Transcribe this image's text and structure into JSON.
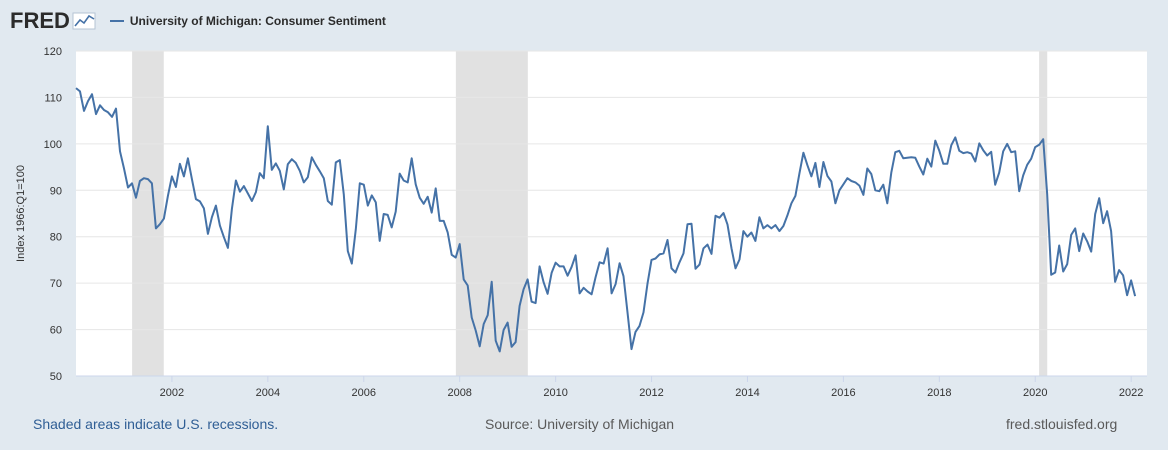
{
  "header": {
    "logo": "FRED",
    "series_title": "University of Michigan: Consumer Sentiment"
  },
  "footer": {
    "recession_note": "Shaded areas indicate U.S. recessions.",
    "source": "Source: University of Michigan",
    "site": "fred.stlouisfed.org"
  },
  "colors": {
    "line": "#4572a7",
    "recession": "#e1e1e1",
    "grid": "#e6e6e6",
    "background": "#e1e9f0"
  },
  "chart_data": {
    "type": "line",
    "title": "University of Michigan: Consumer Sentiment",
    "xlabel": "",
    "ylabel": "Index 1966:Q1=100",
    "xlim": [
      2000.0,
      2022.33
    ],
    "ylim": [
      50,
      120
    ],
    "yticks": [
      50,
      60,
      70,
      80,
      90,
      100,
      110,
      120
    ],
    "xticks": [
      2002,
      2004,
      2006,
      2008,
      2010,
      2012,
      2014,
      2016,
      2018,
      2020,
      2022
    ],
    "grid": true,
    "recessions": [
      [
        2001.17,
        2001.83
      ],
      [
        2007.92,
        2009.42
      ],
      [
        2020.08,
        2020.25
      ]
    ],
    "series": [
      {
        "name": "University of Michigan: Consumer Sentiment",
        "start": 2000.0,
        "step": 0.08333,
        "values": [
          112.0,
          111.3,
          107.1,
          109.2,
          110.7,
          106.4,
          108.3,
          107.3,
          106.8,
          105.8,
          107.6,
          98.4,
          94.7,
          90.6,
          91.5,
          88.4,
          92.0,
          92.6,
          92.4,
          91.5,
          81.8,
          82.7,
          83.9,
          88.8,
          93.0,
          90.7,
          95.7,
          93.0,
          96.9,
          92.4,
          88.1,
          87.6,
          86.1,
          80.6,
          84.2,
          86.7,
          82.4,
          79.9,
          77.6,
          86.0,
          92.1,
          89.7,
          90.9,
          89.3,
          87.7,
          89.6,
          93.7,
          92.6,
          103.8,
          94.4,
          95.8,
          94.2,
          90.2,
          95.6,
          96.7,
          95.9,
          94.2,
          91.7,
          92.8,
          97.1,
          95.5,
          94.1,
          92.6,
          87.7,
          86.9,
          96.0,
          96.5,
          89.1,
          76.9,
          74.2,
          81.6,
          91.5,
          91.2,
          86.7,
          88.9,
          87.4,
          79.1,
          84.9,
          84.7,
          82.0,
          85.4,
          93.6,
          92.1,
          91.7,
          96.9,
          91.3,
          88.4,
          87.1,
          88.6,
          85.2,
          90.4,
          83.4,
          83.4,
          80.9,
          76.1,
          75.5,
          78.4,
          70.8,
          69.5,
          62.6,
          59.8,
          56.4,
          61.2,
          63.1,
          70.3,
          57.6,
          55.3,
          59.9,
          61.5,
          56.3,
          57.3,
          65.1,
          68.7,
          70.8,
          66.0,
          65.7,
          73.6,
          70.2,
          67.7,
          72.2,
          74.4,
          73.6,
          73.6,
          71.6,
          73.5,
          76.0,
          67.8,
          69.0,
          68.2,
          67.6,
          71.3,
          74.5,
          74.2,
          77.5,
          67.8,
          69.8,
          74.3,
          71.5,
          63.7,
          55.8,
          59.5,
          60.8,
          63.7,
          69.9,
          75.0,
          75.3,
          76.2,
          76.4,
          79.3,
          73.2,
          72.3,
          74.5,
          76.4,
          82.7,
          82.8,
          73.1,
          74.0,
          77.5,
          78.3,
          76.3,
          84.5,
          84.1,
          85.1,
          82.6,
          77.5,
          73.2,
          75.1,
          81.2,
          80.0,
          80.9,
          79.1,
          84.2,
          81.8,
          82.5,
          81.8,
          82.5,
          81.2,
          82.3,
          84.6,
          87.2,
          88.8,
          93.6,
          98.1,
          95.4,
          93.0,
          95.9,
          90.7,
          96.1,
          93.1,
          91.9,
          87.2,
          90.0,
          91.3,
          92.6,
          92.0,
          91.7,
          91.0,
          89.0,
          94.7,
          93.5,
          90.0,
          89.8,
          91.2,
          87.2,
          93.8,
          98.2,
          98.5,
          96.9,
          97.0,
          97.1,
          97.0,
          95.1,
          93.4,
          96.8,
          95.1,
          100.7,
          98.5,
          95.7,
          95.7,
          99.7,
          101.4,
          98.5,
          98.0,
          98.2,
          97.9,
          96.2,
          100.1,
          98.6,
          97.5,
          98.3,
          91.2,
          93.8,
          98.4,
          100.0,
          98.2,
          98.4,
          89.8,
          93.2,
          95.5,
          96.8,
          99.3,
          99.8,
          101.0,
          89.1,
          71.8,
          72.3,
          78.1,
          72.5,
          74.1,
          80.4,
          81.8,
          76.9,
          80.7,
          79.0,
          76.8,
          84.9,
          88.3,
          82.9,
          85.5,
          81.2,
          70.3,
          72.8,
          71.7,
          67.4,
          70.6,
          67.2
        ]
      }
    ]
  }
}
